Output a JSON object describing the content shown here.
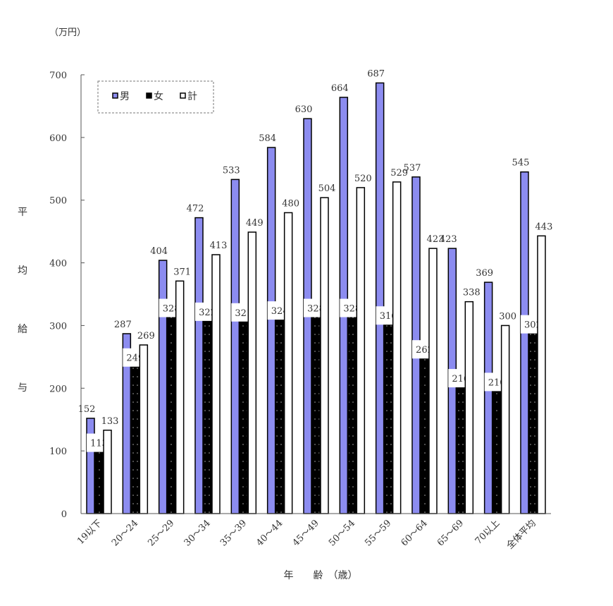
{
  "chart_data": {
    "type": "bar",
    "unit_label": "（万円）",
    "ylabel": "平均給与",
    "ylabel_chars": [
      "平",
      "均",
      "給",
      "与"
    ],
    "xlabel": "年　　齢　（歳）",
    "ylim": [
      0,
      700
    ],
    "yticks": [
      "0",
      "100",
      "200",
      "300",
      "400",
      "500",
      "600",
      "700"
    ],
    "grid": false,
    "legend_position": "top-left",
    "categories": [
      "19以下",
      "20～24",
      "25～29",
      "30～34",
      "35～39",
      "40～44",
      "45～49",
      "50～54",
      "55～59",
      "60～64",
      "65～69",
      "70以上",
      "全体平均"
    ],
    "series": [
      {
        "name": "男",
        "color": "#8c8cf0",
        "values": [
          152,
          287,
          404,
          472,
          533,
          584,
          630,
          664,
          687,
          537,
          423,
          369,
          545
        ]
      },
      {
        "name": "女",
        "color": "#000000",
        "values": [
          113,
          249,
          328,
          322,
          321,
          324,
          328,
          328,
          316,
          262,
          216,
          210,
          302
        ]
      },
      {
        "name": "計",
        "color": "#ffffff",
        "values": [
          133,
          269,
          371,
          413,
          449,
          480,
          504,
          520,
          529,
          423,
          338,
          300,
          443
        ]
      }
    ]
  }
}
